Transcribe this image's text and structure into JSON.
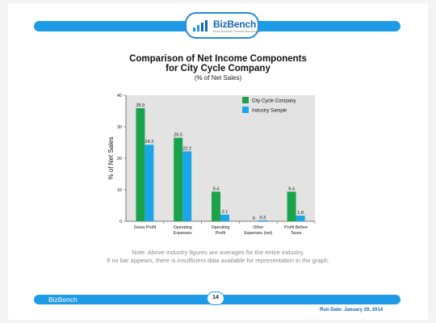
{
  "header": {
    "brand": "BizBench",
    "tagline": "Small Business Financial Benchmarks"
  },
  "chart": {
    "title_line1": "Comparison of Net Income Components",
    "title_line2": "for City Cycle Company",
    "subtitle": "(% of Net Sales)"
  },
  "note": {
    "line1": "Note: Above industry figures are averages for the entire industry.",
    "line2": "If no bar appears, there is insufficient data available for representation in the graph."
  },
  "footer": {
    "brand": "BizBench",
    "page_number": "14",
    "run_date": "Run Date: January 29, 2014"
  },
  "colors": {
    "company": "#1aa34a",
    "industry": "#1aa6e8",
    "plot_bg": "#e3e3e3",
    "accent": "#1e9be6"
  },
  "chart_data": {
    "type": "bar",
    "title": "Comparison of Net Income Components for City Cycle Company",
    "subtitle": "(% of Net Sales)",
    "xlabel": "",
    "ylabel": "% of Net Sales",
    "ylim": [
      0,
      40
    ],
    "yticks": [
      0,
      10,
      20,
      30,
      40
    ],
    "grid": false,
    "legend_position": "top-right",
    "categories": [
      [
        "Gross Profit"
      ],
      [
        "Operating",
        "Expenses"
      ],
      [
        "Operating",
        "Profit"
      ],
      [
        "Other",
        "Expenses (net)"
      ],
      [
        "Profit Before",
        "Taxes"
      ]
    ],
    "series": [
      {
        "name": "City Cycle Company",
        "values": [
          35.9,
          26.5,
          9.4,
          0,
          9.4
        ],
        "labels": [
          "35.9",
          "26.5",
          "9.4",
          "0",
          "9.4"
        ]
      },
      {
        "name": "Industry Sample",
        "values": [
          24.3,
          22.2,
          2.1,
          0.3,
          1.8
        ],
        "labels": [
          "24.3",
          "22.2",
          "2.1",
          "0.3",
          "1.8"
        ]
      }
    ]
  }
}
